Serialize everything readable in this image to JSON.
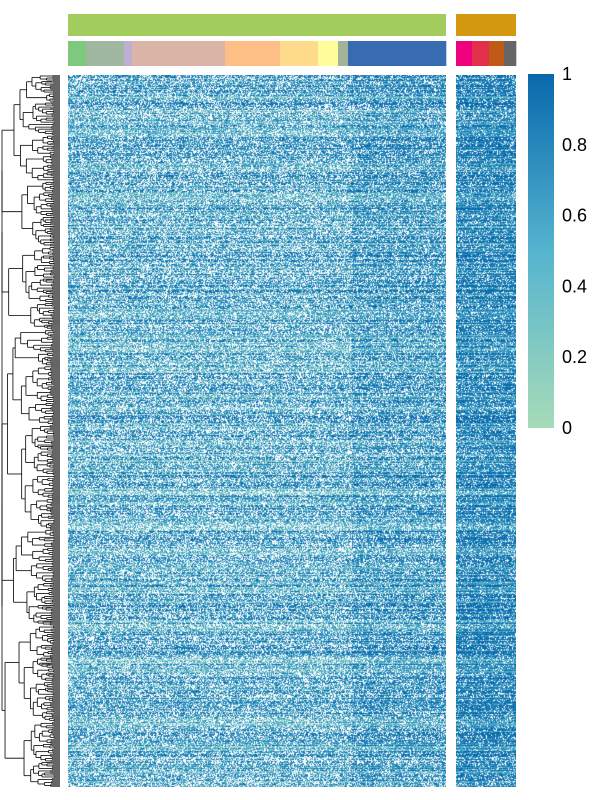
{
  "chart_data": {
    "type": "heatmap",
    "title": "",
    "xlabel": "",
    "ylabel": "",
    "value_range": [
      0,
      1
    ],
    "colorbar": {
      "ticks": [
        "0",
        "0.2",
        "0.4",
        "0.6",
        "0.8",
        "1"
      ],
      "tick_values": [
        0,
        0.2,
        0.4,
        0.6,
        0.8,
        1
      ],
      "color_low": "#a6dbb8",
      "color_high": "#0868ac",
      "placement": "right"
    },
    "na_color": "#ffffff",
    "column_groups": [
      {
        "color": "#a3cc5e",
        "columns": 378
      },
      {
        "color": "#d39710",
        "columns": 60
      }
    ],
    "column_subgroups": [
      {
        "group": 0,
        "color": "#7fc97f",
        "columns": 18
      },
      {
        "group": 0,
        "color": "#a0b8a0",
        "columns": 38
      },
      {
        "group": 0,
        "color": "#beaed4",
        "columns": 8
      },
      {
        "group": 0,
        "color": "#dbb4a8",
        "columns": 93
      },
      {
        "group": 0,
        "color": "#fdbf86",
        "columns": 55
      },
      {
        "group": 0,
        "color": "#fedb8a",
        "columns": 38
      },
      {
        "group": 0,
        "color": "#fefd99",
        "columns": 20
      },
      {
        "group": 0,
        "color": "#a3b399",
        "columns": 10
      },
      {
        "group": 0,
        "color": "#386cb0",
        "columns": 98
      },
      {
        "group": 1,
        "color": "#f0027f",
        "columns": 16
      },
      {
        "group": 1,
        "color": "#e2304a",
        "columns": 17
      },
      {
        "group": 1,
        "color": "#bf5b17",
        "columns": 15
      },
      {
        "group": 1,
        "color": "#666666",
        "columns": 12
      }
    ],
    "rows": 710,
    "row_dendrogram": "left",
    "grid": false,
    "legend": "right"
  }
}
